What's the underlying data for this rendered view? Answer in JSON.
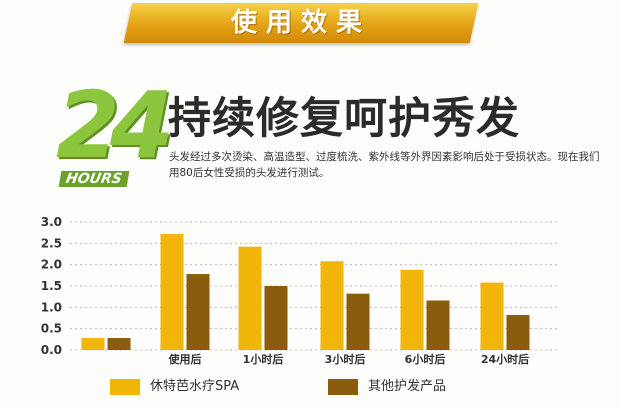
{
  "header": {
    "banner_title": "使用效果",
    "big_number": "24",
    "hours_label": "HOURS",
    "headline": "持续修复呵护秀发",
    "description": "头发经过多次烫染、高温造型、过度梳洗、紫外线等外界因素影响后处于受损状态。现在我们用80后女性受损的头发进行测试。"
  },
  "colors": {
    "banner": "#e3a214",
    "accent_green": "#8cc63f",
    "series1": "#f2b50a",
    "series2": "#8a5c0e"
  },
  "chart_data": {
    "type": "bar",
    "categories": [
      "",
      "使用后",
      "1小时后",
      "3小时后",
      "6小时后",
      "24小时后"
    ],
    "series": [
      {
        "name": "休特芭水疗SPA",
        "values": [
          0.28,
          2.72,
          2.42,
          2.08,
          1.88,
          1.58
        ],
        "color": "#f2b50a"
      },
      {
        "name": "其他护发产品",
        "values": [
          0.28,
          1.78,
          1.5,
          1.32,
          1.16,
          0.82
        ],
        "color": "#8a5c0e"
      }
    ],
    "yticks": [
      "0.0",
      "0.5",
      "1.0",
      "1.5",
      "2.0",
      "2.5",
      "3.0"
    ],
    "ylim": [
      0,
      3.0
    ],
    "grid": true,
    "legend_position": "bottom"
  }
}
